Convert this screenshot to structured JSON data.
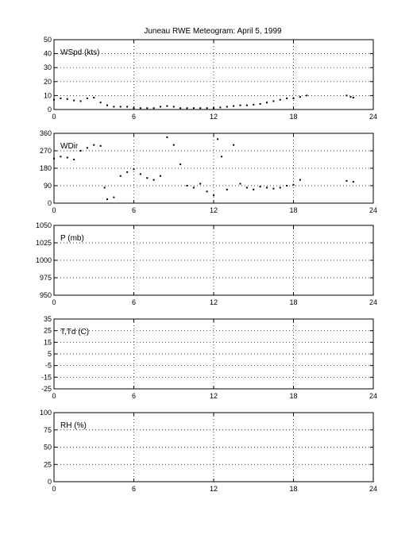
{
  "title": "Juneau RWE Meteogram:      April  5, 1999",
  "chart_data": [
    {
      "type": "scatter",
      "label": "WSpd (kts)",
      "xlim": [
        0,
        24
      ],
      "ylim": [
        0,
        50
      ],
      "xticks": [
        0,
        6,
        12,
        18,
        24
      ],
      "yticks": [
        0,
        10,
        20,
        30,
        40,
        50
      ],
      "grid": true,
      "x": [
        0,
        0.5,
        1,
        1.5,
        2,
        2.5,
        3,
        3.5,
        4,
        4.5,
        5,
        5.5,
        6,
        6.5,
        7,
        7.5,
        8,
        8.5,
        9,
        9.5,
        10,
        10.5,
        11,
        11.5,
        12,
        12.5,
        13,
        13.5,
        14,
        14.5,
        15,
        15.5,
        16,
        16.5,
        17,
        17.5,
        18,
        18.5,
        19,
        22,
        22.3,
        22.5
      ],
      "y": [
        7,
        8,
        7.5,
        6.5,
        6,
        8,
        8.5,
        5,
        3,
        2,
        2,
        2,
        1,
        1,
        1,
        1,
        2,
        2.5,
        2,
        1,
        1,
        1,
        1,
        1,
        1,
        1.5,
        2,
        2.5,
        3,
        3,
        3.5,
        4,
        5,
        6,
        7,
        8,
        8,
        9,
        10,
        10,
        9,
        8.5
      ]
    },
    {
      "type": "scatter",
      "label": "WDir",
      "xlim": [
        0,
        24
      ],
      "ylim": [
        0,
        360
      ],
      "xticks": [
        0,
        6,
        12,
        18,
        24
      ],
      "yticks": [
        0,
        90,
        180,
        270,
        360
      ],
      "grid": true,
      "x": [
        0,
        0.5,
        1,
        1.5,
        2,
        2.5,
        3,
        3.5,
        3.8,
        4,
        4.5,
        5,
        5.5,
        6,
        6.5,
        7,
        7.5,
        8,
        8.5,
        9,
        9.5,
        10,
        10.5,
        11,
        11.5,
        12,
        12.3,
        12.6,
        13,
        13.5,
        14,
        14.5,
        15,
        15.5,
        16,
        16.5,
        17,
        17.5,
        18,
        18.5,
        22,
        22.5
      ],
      "y": [
        230,
        240,
        235,
        225,
        270,
        285,
        300,
        295,
        80,
        20,
        30,
        140,
        160,
        175,
        150,
        130,
        120,
        140,
        340,
        300,
        200,
        90,
        80,
        100,
        60,
        40,
        330,
        240,
        70,
        300,
        100,
        80,
        70,
        85,
        80,
        75,
        80,
        90,
        95,
        120,
        115,
        110
      ]
    },
    {
      "type": "scatter",
      "label": "P (mb)",
      "xlim": [
        0,
        24
      ],
      "ylim": [
        950,
        1050
      ],
      "xticks": [
        0,
        6,
        12,
        18,
        24
      ],
      "yticks": [
        950,
        975,
        1000,
        1025,
        1050
      ],
      "grid": true,
      "x": [],
      "y": []
    },
    {
      "type": "scatter",
      "label": "T,Td (C)",
      "xlim": [
        0,
        24
      ],
      "ylim": [
        -25,
        35
      ],
      "xticks": [
        0,
        6,
        12,
        18,
        24
      ],
      "yticks": [
        -25,
        -15,
        -5,
        5,
        15,
        25,
        35
      ],
      "grid": true,
      "x": [],
      "y": []
    },
    {
      "type": "scatter",
      "label": "RH (%)",
      "xlim": [
        0,
        24
      ],
      "ylim": [
        0,
        100
      ],
      "xticks": [
        0,
        6,
        12,
        18,
        24
      ],
      "yticks": [
        0,
        25,
        50,
        75,
        100
      ],
      "grid": true,
      "x": [],
      "y": []
    }
  ]
}
